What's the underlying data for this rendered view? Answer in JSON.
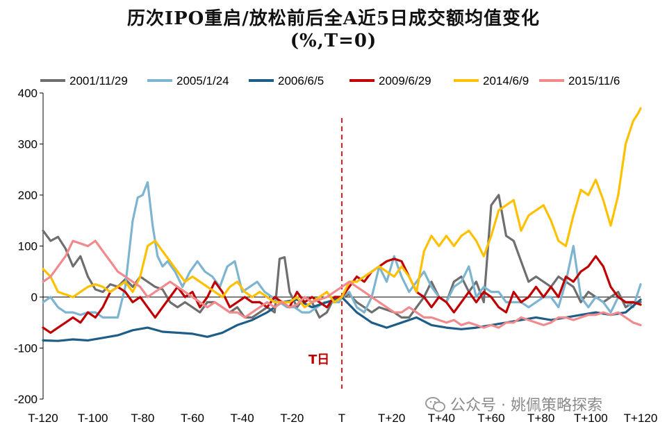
{
  "title_line1": "历次IPO重启/放松前后全A近5日成交额均值变化",
  "title_line2": "(%,T=0)",
  "watermark": "公众号 · 姚佩策略探索",
  "t_day_label": "T日",
  "colors": {
    "s2001": "#6e6e6e",
    "s2005": "#7db5d1",
    "s2006": "#1d5d87",
    "s2009": "#c00000",
    "s2014": "#ffc000",
    "s2015": "#f08a8c",
    "tline": "#e02020"
  },
  "chart_data": {
    "type": "line",
    "title": "历次IPO重启/放松前后全A近5日成交额均值变化 (%,T=0)",
    "xlabel": "",
    "ylabel": "",
    "xlim": [
      -120,
      120
    ],
    "ylim": [
      -200,
      400
    ],
    "yticks": [
      -200,
      -100,
      0,
      100,
      200,
      300,
      400
    ],
    "xticks": [
      -120,
      -100,
      -80,
      -60,
      -40,
      -20,
      0,
      20,
      40,
      60,
      80,
      100,
      120
    ],
    "xtick_labels": [
      "T-120",
      "T-100",
      "T-80",
      "T-60",
      "T-40",
      "T-20",
      "T",
      "T+20",
      "T+40",
      "T+60",
      "T+80",
      "T+100",
      "T+120"
    ],
    "legend_position": "top",
    "grid": false,
    "series": [
      {
        "name": "2001/11/29",
        "color_key": "s2001",
        "x": [
          -120,
          -117,
          -114,
          -111,
          -108,
          -105,
          -102,
          -99,
          -96,
          -93,
          -90,
          -87,
          -84,
          -81,
          -78,
          -75,
          -72,
          -69,
          -66,
          -63,
          -60,
          -57,
          -54,
          -51,
          -48,
          -45,
          -42,
          -39,
          -36,
          -33,
          -30,
          -27,
          -25,
          -23,
          -21,
          -18,
          -15,
          -12,
          -9,
          -6,
          -3,
          0,
          3,
          6,
          9,
          12,
          15,
          18,
          21,
          24,
          27,
          30,
          33,
          36,
          39,
          42,
          45,
          48,
          51,
          54,
          57,
          60,
          63,
          66,
          69,
          72,
          75,
          78,
          81,
          84,
          87,
          90,
          93,
          96,
          99,
          102,
          105,
          108,
          111,
          114,
          117,
          120
        ],
        "y": [
          130,
          110,
          118,
          95,
          60,
          80,
          40,
          15,
          10,
          25,
          20,
          35,
          20,
          40,
          30,
          20,
          15,
          -10,
          -20,
          -10,
          -20,
          -30,
          -10,
          -10,
          -20,
          -30,
          -20,
          -40,
          -40,
          -30,
          -20,
          -30,
          75,
          78,
          10,
          -20,
          0,
          -10,
          -40,
          -30,
          0,
          0,
          5,
          -10,
          -20,
          -30,
          -20,
          -25,
          -30,
          -40,
          -40,
          -20,
          0,
          30,
          0,
          -10,
          30,
          40,
          10,
          30,
          -10,
          180,
          200,
          120,
          110,
          70,
          30,
          40,
          30,
          20,
          40,
          30,
          20,
          -10,
          10,
          0,
          -10,
          0,
          10,
          -20,
          -10,
          -10
        ]
      },
      {
        "name": "2005/1/24",
        "color_key": "s2005",
        "x": [
          -120,
          -117,
          -114,
          -111,
          -108,
          -105,
          -102,
          -99,
          -96,
          -93,
          -90,
          -87,
          -84,
          -82,
          -80,
          -78,
          -76,
          -74,
          -72,
          -70,
          -67,
          -64,
          -61,
          -58,
          -55,
          -52,
          -49,
          -46,
          -43,
          -40,
          -37,
          -34,
          -31,
          -28,
          -25,
          -22,
          -19,
          -16,
          -13,
          -10,
          -7,
          -4,
          -1,
          0,
          3,
          6,
          9,
          12,
          15,
          18,
          21,
          24,
          27,
          30,
          33,
          36,
          39,
          42,
          45,
          48,
          51,
          54,
          57,
          60,
          63,
          66,
          69,
          72,
          75,
          78,
          81,
          84,
          87,
          90,
          93,
          96,
          99,
          102,
          105,
          108,
          111,
          114,
          117,
          120
        ],
        "y": [
          -10,
          0,
          -20,
          -30,
          -30,
          -35,
          -30,
          -30,
          -40,
          -40,
          -40,
          20,
          150,
          195,
          200,
          225,
          140,
          80,
          60,
          70,
          50,
          20,
          50,
          70,
          50,
          40,
          20,
          60,
          70,
          10,
          20,
          30,
          10,
          0,
          -10,
          -20,
          -20,
          -30,
          -30,
          -20,
          -10,
          -10,
          -10,
          0,
          10,
          -20,
          -30,
          0,
          60,
          30,
          80,
          40,
          10,
          30,
          50,
          20,
          0,
          -10,
          20,
          30,
          60,
          0,
          20,
          10,
          10,
          -10,
          -10,
          -10,
          -20,
          -10,
          0,
          0,
          -20,
          30,
          100,
          0,
          -20,
          0,
          -10,
          -30,
          0,
          -10,
          -20,
          25
        ]
      },
      {
        "name": "2006/6/5",
        "color_key": "s2006",
        "x": [
          -120,
          -114,
          -108,
          -102,
          -96,
          -90,
          -84,
          -78,
          -72,
          -66,
          -60,
          -54,
          -48,
          -42,
          -36,
          -30,
          -24,
          -18,
          -12,
          -6,
          0,
          6,
          12,
          18,
          24,
          30,
          36,
          42,
          48,
          54,
          60,
          66,
          72,
          78,
          84,
          90,
          96,
          102,
          108,
          114,
          120
        ],
        "y": [
          -85,
          -86,
          -83,
          -85,
          -80,
          -75,
          -65,
          -60,
          -68,
          -70,
          -72,
          -78,
          -70,
          -55,
          -45,
          -30,
          -10,
          -5,
          -20,
          -10,
          0,
          -30,
          -50,
          -60,
          -50,
          -40,
          -55,
          -60,
          -63,
          -60,
          -55,
          -50,
          -45,
          -40,
          -45,
          -40,
          -35,
          -30,
          -35,
          -30,
          -5
        ]
      },
      {
        "name": "2009/6/29",
        "color_key": "s2009",
        "x": [
          -120,
          -117,
          -114,
          -111,
          -108,
          -105,
          -102,
          -99,
          -96,
          -93,
          -90,
          -87,
          -84,
          -81,
          -78,
          -75,
          -72,
          -69,
          -66,
          -63,
          -60,
          -57,
          -54,
          -51,
          -48,
          -45,
          -42,
          -39,
          -36,
          -33,
          -30,
          -27,
          -24,
          -21,
          -18,
          -15,
          -12,
          -9,
          -6,
          -3,
          0,
          3,
          6,
          9,
          12,
          15,
          18,
          21,
          24,
          27,
          30,
          33,
          36,
          39,
          42,
          45,
          48,
          51,
          54,
          57,
          60,
          63,
          66,
          69,
          72,
          75,
          78,
          81,
          84,
          87,
          90,
          93,
          96,
          99,
          102,
          105,
          108,
          111,
          114,
          117,
          120
        ],
        "y": [
          -60,
          -70,
          -60,
          -50,
          -40,
          -50,
          -30,
          -40,
          -20,
          10,
          20,
          10,
          -10,
          0,
          -20,
          -40,
          -20,
          0,
          20,
          0,
          10,
          -20,
          0,
          30,
          10,
          -20,
          -10,
          0,
          -10,
          -10,
          -20,
          0,
          -10,
          -20,
          10,
          -10,
          0,
          -10,
          -20,
          0,
          0,
          20,
          40,
          30,
          50,
          60,
          70,
          75,
          70,
          40,
          10,
          0,
          -20,
          0,
          -10,
          -30,
          -10,
          10,
          -10,
          10,
          0,
          -20,
          -30,
          10,
          -10,
          0,
          20,
          0,
          20,
          0,
          40,
          30,
          50,
          60,
          80,
          60,
          20,
          0,
          -10,
          -10,
          -15
        ]
      },
      {
        "name": "2014/6/9",
        "color_key": "s2014",
        "x": [
          -120,
          -117,
          -114,
          -111,
          -108,
          -105,
          -102,
          -99,
          -96,
          -93,
          -90,
          -87,
          -84,
          -81,
          -78,
          -75,
          -72,
          -69,
          -66,
          -63,
          -60,
          -57,
          -54,
          -51,
          -48,
          -45,
          -42,
          -39,
          -36,
          -33,
          -30,
          -27,
          -24,
          -21,
          -18,
          -15,
          -12,
          -9,
          -6,
          -3,
          0,
          3,
          6,
          9,
          12,
          15,
          18,
          21,
          24,
          27,
          30,
          33,
          36,
          39,
          42,
          45,
          48,
          51,
          54,
          57,
          60,
          63,
          66,
          69,
          72,
          75,
          78,
          81,
          84,
          87,
          90,
          93,
          96,
          99,
          102,
          105,
          108,
          111,
          114,
          117,
          119,
          120
        ],
        "y": [
          55,
          40,
          10,
          5,
          0,
          10,
          20,
          25,
          20,
          10,
          20,
          30,
          10,
          40,
          100,
          110,
          90,
          70,
          50,
          30,
          40,
          30,
          20,
          10,
          0,
          20,
          30,
          10,
          0,
          10,
          0,
          -10,
          -10,
          -10,
          0,
          -20,
          -10,
          0,
          10,
          -10,
          0,
          30,
          30,
          40,
          50,
          60,
          50,
          40,
          60,
          40,
          10,
          90,
          120,
          100,
          120,
          100,
          120,
          130,
          110,
          80,
          120,
          170,
          180,
          190,
          130,
          160,
          170,
          180,
          150,
          110,
          100,
          160,
          210,
          200,
          230,
          190,
          140,
          200,
          300,
          345,
          360,
          370
        ]
      },
      {
        "name": "2015/11/6",
        "color_key": "s2015",
        "x": [
          -120,
          -117,
          -114,
          -111,
          -108,
          -105,
          -102,
          -99,
          -96,
          -93,
          -90,
          -87,
          -84,
          -81,
          -78,
          -75,
          -72,
          -69,
          -66,
          -63,
          -60,
          -57,
          -54,
          -51,
          -48,
          -45,
          -42,
          -39,
          -36,
          -33,
          -30,
          -27,
          -24,
          -21,
          -18,
          -15,
          -12,
          -9,
          -6,
          -3,
          0,
          3,
          6,
          9,
          12,
          15,
          18,
          21,
          24,
          27,
          30,
          33,
          36,
          39,
          42,
          45,
          48,
          51,
          54,
          57,
          60,
          63,
          66,
          69,
          72,
          75,
          78,
          81,
          84,
          87,
          90,
          93,
          96,
          99,
          102,
          105,
          108,
          111,
          114,
          117,
          120
        ],
        "y": [
          30,
          40,
          60,
          80,
          110,
          105,
          100,
          110,
          90,
          70,
          50,
          40,
          30,
          20,
          0,
          10,
          20,
          30,
          20,
          10,
          0,
          -10,
          -20,
          -10,
          -20,
          -30,
          -30,
          -40,
          -30,
          -20,
          -10,
          -20,
          -10,
          -20,
          -15,
          0,
          -10,
          -5,
          0,
          10,
          20,
          30,
          20,
          10,
          0,
          -10,
          -20,
          -30,
          -30,
          -20,
          -30,
          -40,
          -40,
          -45,
          -50,
          -45,
          -55,
          -50,
          -55,
          -60,
          -55,
          -60,
          -50,
          -50,
          -40,
          -45,
          -50,
          -55,
          -50,
          -40,
          -40,
          -45,
          -40,
          -35,
          -35,
          -30,
          -35,
          -30,
          -40,
          -50,
          -55
        ]
      }
    ]
  }
}
